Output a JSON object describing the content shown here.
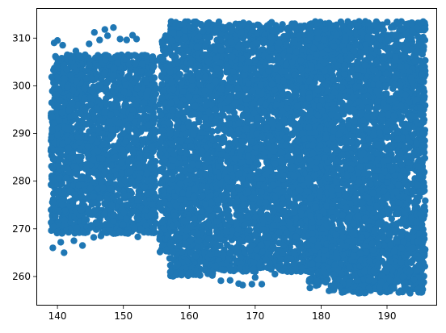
{
  "chart_data": {
    "type": "scatter",
    "title": "",
    "xlabel": "",
    "ylabel": "",
    "xlim": [
      136.8,
      197.6
    ],
    "ylim": [
      253.9,
      316.3
    ],
    "xticks": [
      140,
      150,
      160,
      170,
      180,
      190
    ],
    "yticks": [
      260,
      270,
      280,
      290,
      300,
      310
    ],
    "xtick_labels": [
      "140",
      "150",
      "160",
      "170",
      "180",
      "190"
    ],
    "ytick_labels": [
      "260",
      "270",
      "280",
      "290",
      "300",
      "310"
    ],
    "grid": false,
    "legend": "none",
    "series": [
      {
        "color": "#1f77b4",
        "marker": "circle",
        "regions": [
          {
            "x": [
              139,
              155
            ],
            "y": [
              269,
              306.5
            ]
          },
          {
            "x": [
              155.5,
              157
            ],
            "y": [
              265,
              310
            ]
          },
          {
            "x": [
              157,
              164
            ],
            "y": [
              260,
              313.5
            ]
          },
          {
            "x": [
              164,
              181
            ],
            "y": [
              261,
              313
            ]
          },
          {
            "x": [
              178,
              181.5
            ],
            "y": [
              258,
              313.5
            ]
          },
          {
            "x": [
              181.5,
              195.8
            ],
            "y": [
              256.5,
              313.5
            ]
          }
        ],
        "points": [
          [
            139.5,
            309
          ],
          [
            140,
            309.5
          ],
          [
            140.8,
            308.5
          ],
          [
            141.5,
            306.5
          ],
          [
            142.2,
            306
          ],
          [
            143.3,
            306.3
          ],
          [
            144.8,
            308.8
          ],
          [
            145.6,
            311.2
          ],
          [
            147.2,
            311.8
          ],
          [
            147.6,
            310.5
          ],
          [
            148.5,
            312.2
          ],
          [
            149.5,
            309.8
          ],
          [
            150.5,
            309.6
          ],
          [
            152.0,
            309.8
          ],
          [
            151.4,
            310.6
          ],
          [
            146.4,
            309.6
          ],
          [
            142.8,
            307.3
          ],
          [
            144.2,
            306.5
          ],
          [
            139.3,
            266
          ],
          [
            141,
            265
          ],
          [
            140.5,
            267.2
          ],
          [
            142.5,
            267.5
          ],
          [
            143.8,
            266.5
          ],
          [
            145.5,
            268.2
          ],
          [
            146.6,
            268.5
          ],
          [
            148.5,
            269
          ],
          [
            150.3,
            269.1
          ],
          [
            152.2,
            268.3
          ],
          [
            153.7,
            269.5
          ],
          [
            155.5,
            267.8
          ],
          [
            156.5,
            265.6
          ],
          [
            157.2,
            263.8
          ],
          [
            158.3,
            262.5
          ],
          [
            160.2,
            260.8
          ],
          [
            161.5,
            260.5
          ],
          [
            163.5,
            260.2
          ],
          [
            164.8,
            259.1
          ],
          [
            166.2,
            259.2
          ],
          [
            167.5,
            258.5
          ],
          [
            168.1,
            258.2
          ],
          [
            169.5,
            258.4
          ],
          [
            170.0,
            259.8
          ],
          [
            171.0,
            258.4
          ],
          [
            173.0,
            260.5
          ],
          [
            175.5,
            261
          ],
          [
            178.3,
            257.6
          ],
          [
            181.2,
            257.0
          ],
          [
            182.0,
            258.2
          ],
          [
            183.5,
            256.8
          ],
          [
            186,
            256.6
          ],
          [
            189,
            256.7
          ],
          [
            192,
            256.8
          ],
          [
            195.3,
            256.7
          ],
          [
            195.5,
            313.3
          ],
          [
            191.5,
            313.4
          ],
          [
            187.2,
            313.2
          ],
          [
            183,
            313.4
          ],
          [
            179.5,
            313.2
          ],
          [
            176,
            313
          ],
          [
            172.5,
            313.3
          ],
          [
            168.2,
            313.2
          ],
          [
            164.5,
            313.4
          ],
          [
            161,
            313.4
          ],
          [
            158.6,
            312.8
          ],
          [
            156.4,
            310.5
          ],
          [
            185.5,
            303.5
          ]
        ]
      }
    ]
  }
}
